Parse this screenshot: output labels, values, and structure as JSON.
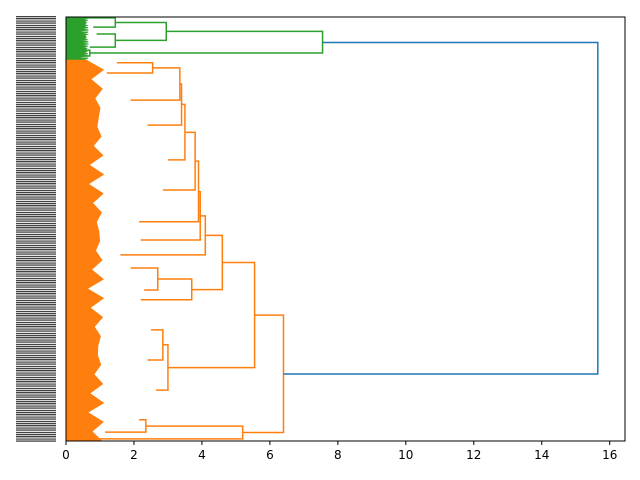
{
  "chart_data": {
    "type": "dendrogram",
    "orientation": "left-to-right",
    "title": "",
    "xlabel": "",
    "ylabel": "",
    "xlim": [
      0,
      16.45
    ],
    "leaf_axis_range": [
      0,
      100
    ],
    "xticks": [
      0,
      2,
      4,
      6,
      8,
      10,
      12,
      14,
      16
    ],
    "colors": {
      "green": "#2ca02c",
      "orange": "#ff7f0e",
      "blue": "#1f77b4"
    },
    "clusters": [
      {
        "name": "green",
        "color": "#2ca02c",
        "leaf_range": [
          0,
          10.2
        ],
        "base_height": 0.6
      },
      {
        "name": "orange",
        "color": "#ff7f0e",
        "leaf_range": [
          10.2,
          100
        ],
        "base_height": 1.0
      }
    ],
    "links": [
      {
        "h": 1.45,
        "top": [
          0.2,
          0.6
        ],
        "bot": [
          2.4,
          0.8
        ],
        "color": "#2ca02c"
      },
      {
        "h": 1.45,
        "top": [
          4.0,
          0.9
        ],
        "bot": [
          7.1,
          0.7
        ],
        "color": "#2ca02c"
      },
      {
        "h": 2.95,
        "top": [
          1.3,
          1.45
        ],
        "bot": [
          5.5,
          1.45
        ],
        "color": "#2ca02c"
      },
      {
        "h": 0.7,
        "top": [
          7.8,
          0.3
        ],
        "bot": [
          9.2,
          0.2
        ],
        "color": "#2ca02c"
      },
      {
        "h": 7.55,
        "top": [
          3.4,
          2.95
        ],
        "bot": [
          8.5,
          0.7
        ],
        "color": "#2ca02c"
      },
      {
        "h": 2.55,
        "top": [
          10.8,
          1.5
        ],
        "bot": [
          13.2,
          1.2
        ],
        "color": "#ff7f0e"
      },
      {
        "h": 3.35,
        "top": [
          12.0,
          2.55
        ],
        "bot": [
          19.6,
          1.9
        ],
        "color": "#ff7f0e"
      },
      {
        "h": 3.4,
        "top": [
          15.8,
          3.35
        ],
        "bot": [
          25.5,
          2.4
        ],
        "color": "#ff7f0e"
      },
      {
        "h": 3.5,
        "top": [
          20.6,
          3.4
        ],
        "bot": [
          33.7,
          3.0
        ],
        "color": "#ff7f0e"
      },
      {
        "h": 3.8,
        "top": [
          27.2,
          3.5
        ],
        "bot": [
          40.8,
          2.85
        ],
        "color": "#ff7f0e"
      },
      {
        "h": 3.9,
        "top": [
          34.0,
          3.8
        ],
        "bot": [
          48.3,
          2.15
        ],
        "color": "#ff7f0e"
      },
      {
        "h": 3.95,
        "top": [
          41.2,
          3.9
        ],
        "bot": [
          52.6,
          2.2
        ],
        "color": "#ff7f0e"
      },
      {
        "h": 4.1,
        "top": [
          46.9,
          3.95
        ],
        "bot": [
          56.1,
          1.6
        ],
        "color": "#ff7f0e"
      },
      {
        "h": 2.7,
        "top": [
          59.2,
          1.9
        ],
        "bot": [
          64.4,
          2.3
        ],
        "color": "#ff7f0e"
      },
      {
        "h": 3.7,
        "top": [
          61.8,
          2.7
        ],
        "bot": [
          66.7,
          2.2
        ],
        "color": "#ff7f0e"
      },
      {
        "h": 4.6,
        "top": [
          51.5,
          4.1
        ],
        "bot": [
          64.3,
          3.7
        ],
        "color": "#ff7f0e"
      },
      {
        "h": 2.85,
        "top": [
          73.8,
          2.5
        ],
        "bot": [
          80.9,
          2.4
        ],
        "color": "#ff7f0e"
      },
      {
        "h": 3.0,
        "top": [
          77.3,
          2.85
        ],
        "bot": [
          88.0,
          2.65
        ],
        "color": "#ff7f0e"
      },
      {
        "h": 5.55,
        "top": [
          57.9,
          4.6
        ],
        "bot": [
          82.7,
          3.0
        ],
        "color": "#ff7f0e"
      },
      {
        "h": 2.35,
        "top": [
          95.0,
          2.15
        ],
        "bot": [
          97.9,
          1.15
        ],
        "color": "#ff7f0e"
      },
      {
        "h": 5.2,
        "top": [
          96.5,
          2.35
        ],
        "bot": [
          99.5,
          0
        ],
        "color": "#ff7f0e"
      },
      {
        "h": 6.4,
        "top": [
          70.3,
          5.55
        ],
        "bot": [
          98.0,
          5.2
        ],
        "color": "#ff7f0e"
      },
      {
        "h": 15.65,
        "top": [
          6.0,
          7.55
        ],
        "bot": [
          84.2,
          6.4
        ],
        "color": "#1f77b4"
      }
    ]
  }
}
